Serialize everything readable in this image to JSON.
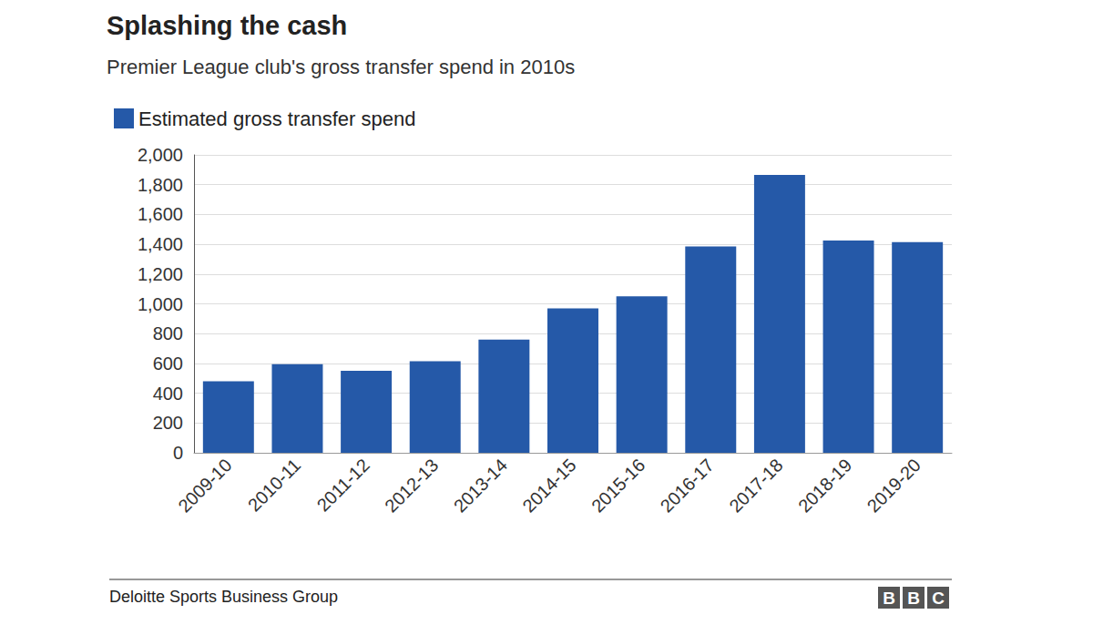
{
  "chart_data": {
    "type": "bar",
    "title": "Splashing the cash",
    "subtitle": "Premier League club's gross transfer spend in 2010s",
    "series": [
      {
        "name": "Estimated gross transfer spend",
        "color": "#2559a8",
        "values": [
          480,
          595,
          550,
          615,
          760,
          970,
          1050,
          1385,
          1865,
          1425,
          1415
        ]
      }
    ],
    "categories": [
      "2009-10",
      "2010-11",
      "2011-12",
      "2012-13",
      "2013-14",
      "2014-15",
      "2015-16",
      "2016-17",
      "2017-18",
      "2018-19",
      "2019-20"
    ],
    "ylim": [
      0,
      2000
    ],
    "yticks": [
      0,
      200,
      400,
      600,
      800,
      {
        "value": 1000,
        "label": "1,000"
      },
      {
        "value": 1200,
        "label": "1,200"
      },
      {
        "value": 1400,
        "label": "1,400"
      },
      {
        "value": 1600,
        "label": "1,600"
      },
      {
        "value": 1800,
        "label": "1,800"
      },
      {
        "value": 2000,
        "label": "2,000"
      }
    ],
    "grid": true,
    "legend": "top-left",
    "source": "Deloitte Sports Business Group",
    "logo": "BBC"
  }
}
